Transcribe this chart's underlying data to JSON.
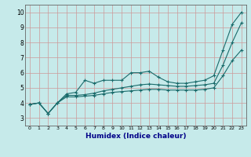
{
  "xlabel": "Humidex (Indice chaleur)",
  "background_color": "#c6eaea",
  "grid_color": "#cc9999",
  "line_color": "#1a6b6b",
  "xlim": [
    -0.5,
    23.5
  ],
  "ylim": [
    2.5,
    10.5
  ],
  "xticks": [
    0,
    1,
    2,
    3,
    4,
    5,
    6,
    7,
    8,
    9,
    10,
    11,
    12,
    13,
    14,
    15,
    16,
    17,
    18,
    19,
    20,
    21,
    22,
    23
  ],
  "yticks": [
    3,
    4,
    5,
    6,
    7,
    8,
    9,
    10
  ],
  "line1_x": [
    0,
    1,
    2,
    3,
    4,
    5,
    6,
    7,
    8,
    9,
    10,
    11,
    12,
    13,
    14,
    15,
    16,
    17,
    18,
    19,
    20,
    21,
    22,
    23
  ],
  "line1_y": [
    3.9,
    4.0,
    3.3,
    4.0,
    4.6,
    4.7,
    5.5,
    5.3,
    5.5,
    5.5,
    5.5,
    6.0,
    6.0,
    6.1,
    5.7,
    5.4,
    5.3,
    5.3,
    5.4,
    5.5,
    5.8,
    7.5,
    9.2,
    10.0
  ],
  "line2_x": [
    0,
    1,
    2,
    3,
    4,
    5,
    6,
    7,
    8,
    9,
    10,
    11,
    12,
    13,
    14,
    15,
    16,
    17,
    18,
    19,
    20,
    21,
    22,
    23
  ],
  "line2_y": [
    3.9,
    4.0,
    3.3,
    4.0,
    4.5,
    4.5,
    4.55,
    4.65,
    4.8,
    4.9,
    5.0,
    5.1,
    5.2,
    5.25,
    5.2,
    5.15,
    5.1,
    5.1,
    5.15,
    5.2,
    5.3,
    6.5,
    8.0,
    9.3
  ],
  "line3_x": [
    0,
    1,
    2,
    3,
    4,
    5,
    6,
    7,
    8,
    9,
    10,
    11,
    12,
    13,
    14,
    15,
    16,
    17,
    18,
    19,
    20,
    21,
    22,
    23
  ],
  "line3_y": [
    3.9,
    4.0,
    3.3,
    4.0,
    4.4,
    4.4,
    4.45,
    4.5,
    4.6,
    4.7,
    4.75,
    4.8,
    4.85,
    4.9,
    4.9,
    4.85,
    4.85,
    4.85,
    4.85,
    4.9,
    5.0,
    5.8,
    6.8,
    7.5
  ]
}
